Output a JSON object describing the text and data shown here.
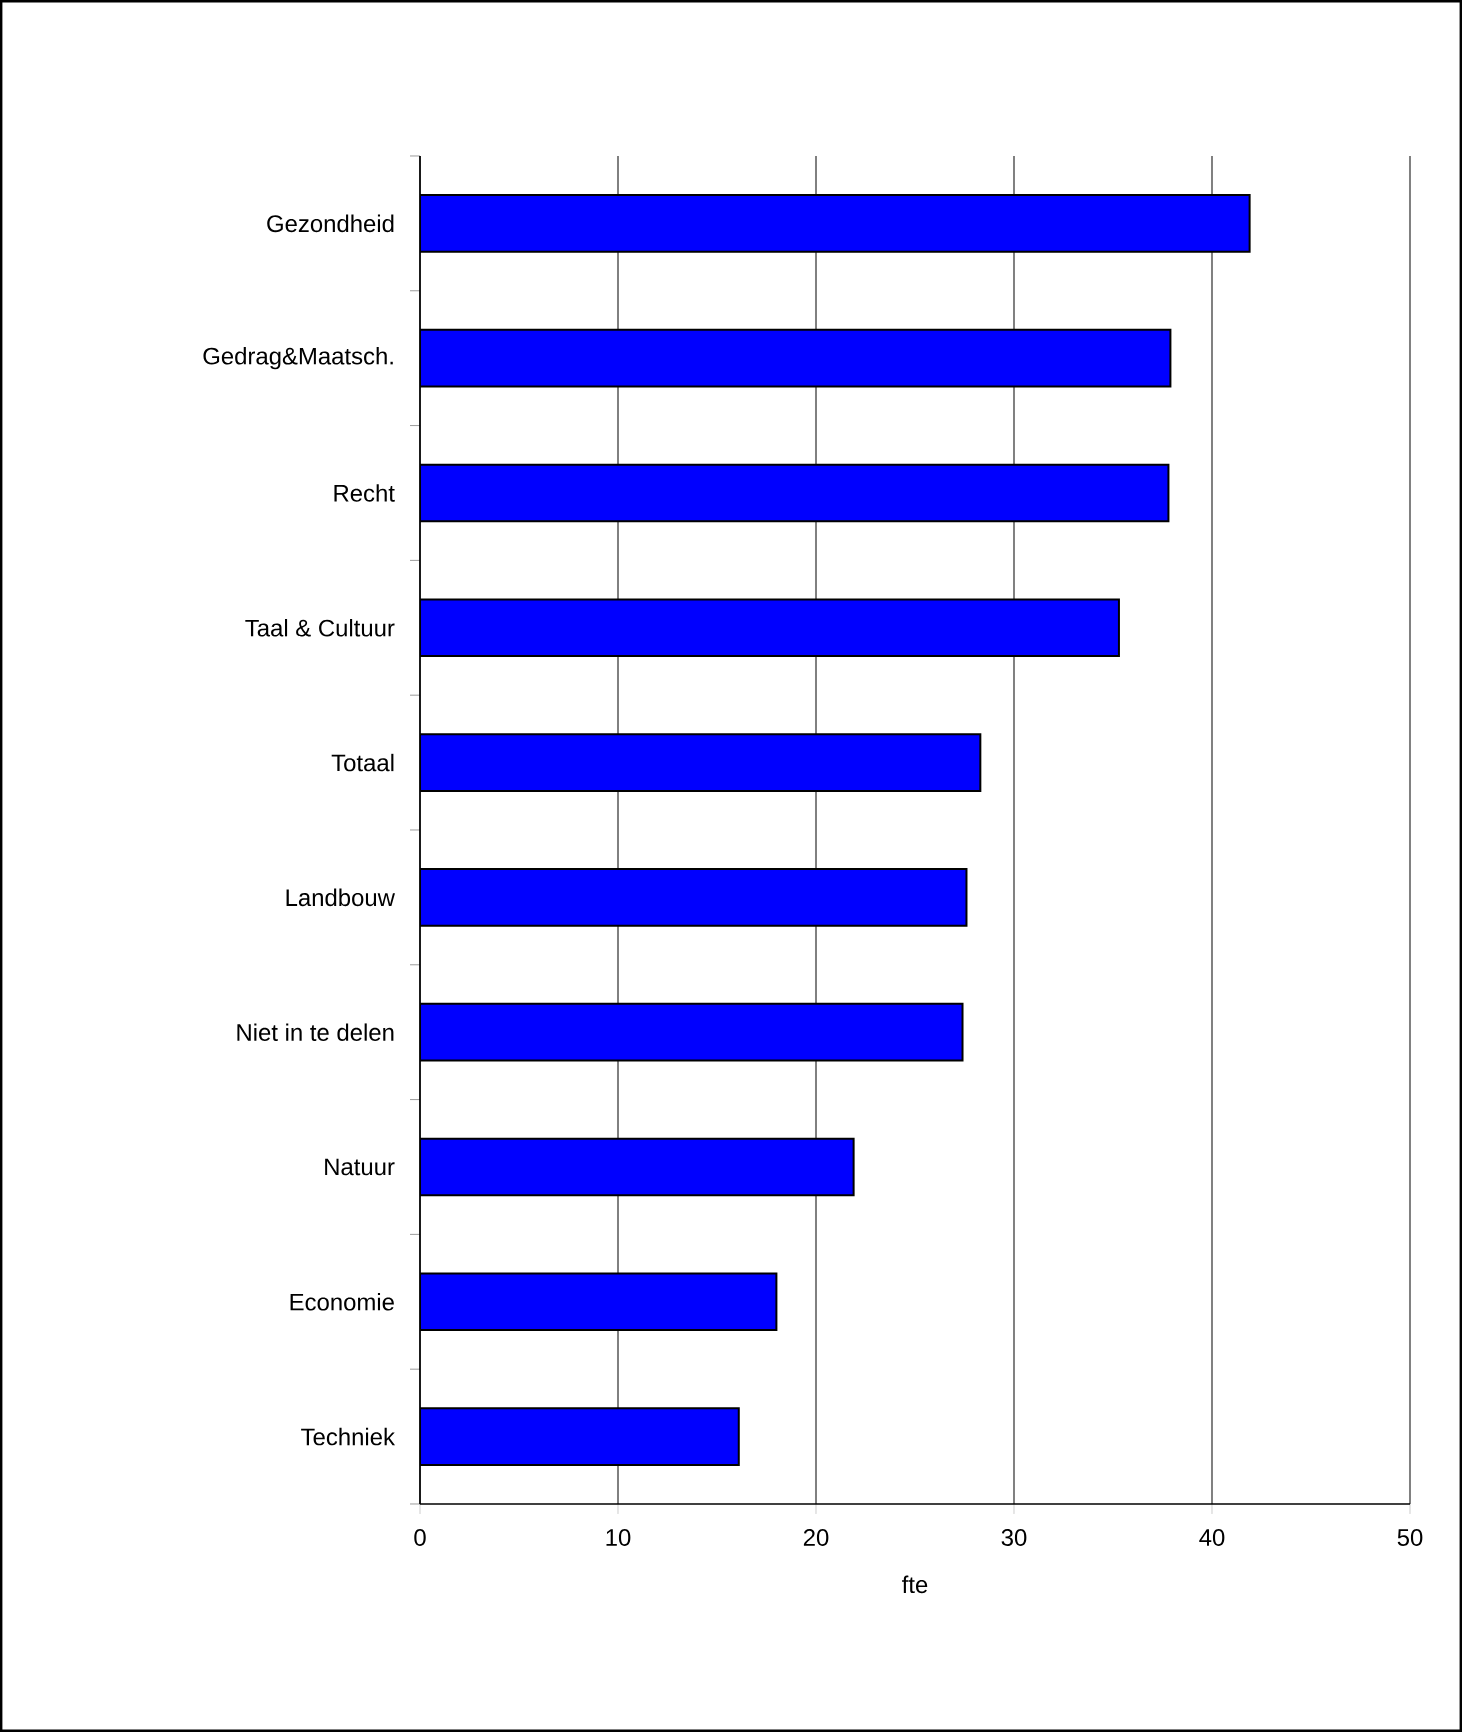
{
  "chart_data": {
    "type": "bar",
    "orientation": "horizontal",
    "xlabel": "fte",
    "categories": [
      "Gezondheid",
      "Gedrag&Maatsch.",
      "Recht",
      "Taal & Cultuur",
      "Totaal",
      "Landbouw",
      "Niet in te delen",
      "Natuur",
      "Economie",
      "Techniek"
    ],
    "values": [
      41.9,
      37.9,
      37.8,
      35.3,
      28.3,
      27.6,
      27.4,
      21.9,
      18.0,
      16.1
    ],
    "color": "#0000ff",
    "xlim": [
      0,
      50
    ],
    "xticks": [
      0,
      10,
      20,
      30,
      40,
      50
    ],
    "grid": "x"
  }
}
